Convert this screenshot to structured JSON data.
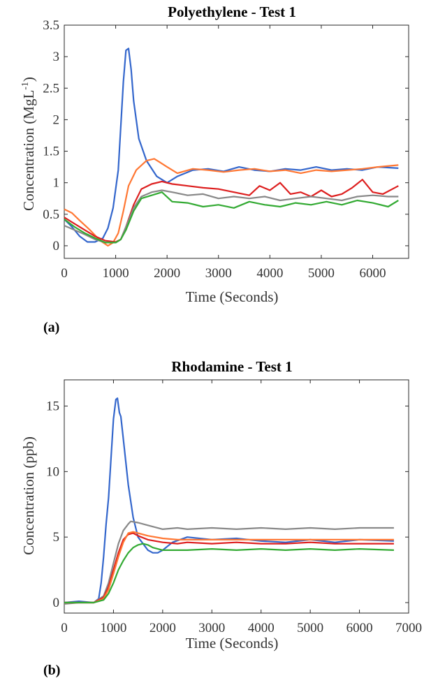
{
  "chart_data": [
    {
      "type": "line",
      "title": "Polyethylene - Test 1",
      "xlabel": "Time (Seconds)",
      "ylabel": "Concentration (MgL",
      "ylabel_sup": "-1",
      "ylabel_close": ")",
      "xlim": [
        0,
        6700
      ],
      "ylim": [
        -0.2,
        3.5
      ],
      "xticks": [
        "0",
        "1000",
        "2000",
        "3000",
        "4000",
        "5000",
        "6000"
      ],
      "yticks": [
        "0",
        "0.5",
        "1",
        "1.5",
        "2",
        "2.5",
        "3",
        "3.5"
      ],
      "grid": false,
      "colors": [
        "#3366cc",
        "#ff7733",
        "#dd1f1f",
        "#888888",
        "#33aa33"
      ],
      "series": [
        {
          "x": [
            0,
            150,
            300,
            450,
            600,
            750,
            850,
            950,
            1050,
            1150,
            1200,
            1250,
            1300,
            1350,
            1450,
            1600,
            1800,
            2000,
            2200,
            2500,
            2800,
            3100,
            3400,
            3700,
            4000,
            4300,
            4600,
            4900,
            5200,
            5500,
            5800,
            6100,
            6500
          ],
          "y": [
            0.42,
            0.3,
            0.15,
            0.06,
            0.06,
            0.12,
            0.28,
            0.6,
            1.2,
            2.6,
            3.1,
            3.13,
            2.8,
            2.3,
            1.7,
            1.35,
            1.1,
            1.0,
            1.1,
            1.2,
            1.22,
            1.18,
            1.25,
            1.2,
            1.18,
            1.22,
            1.2,
            1.25,
            1.2,
            1.22,
            1.2,
            1.25,
            1.23
          ]
        },
        {
          "x": [
            0,
            150,
            300,
            500,
            700,
            850,
            950,
            1050,
            1150,
            1250,
            1400,
            1600,
            1750,
            1850,
            2000,
            2200,
            2500,
            2800,
            3100,
            3400,
            3700,
            4000,
            4300,
            4600,
            4900,
            5200,
            5500,
            5800,
            6100,
            6500
          ],
          "y": [
            0.58,
            0.52,
            0.4,
            0.25,
            0.08,
            0.0,
            0.05,
            0.2,
            0.55,
            0.95,
            1.2,
            1.35,
            1.38,
            1.33,
            1.25,
            1.15,
            1.22,
            1.2,
            1.17,
            1.2,
            1.22,
            1.18,
            1.2,
            1.15,
            1.2,
            1.18,
            1.2,
            1.22,
            1.25,
            1.28
          ]
        },
        {
          "x": [
            0,
            200,
            400,
            600,
            800,
            1000,
            1100,
            1200,
            1350,
            1500,
            1700,
            1900,
            2100,
            2400,
            2700,
            3000,
            3300,
            3600,
            3800,
            4000,
            4200,
            4400,
            4600,
            4800,
            5000,
            5200,
            5400,
            5600,
            5800,
            6000,
            6200,
            6500
          ],
          "y": [
            0.45,
            0.35,
            0.25,
            0.15,
            0.08,
            0.06,
            0.1,
            0.3,
            0.65,
            0.9,
            0.98,
            1.02,
            0.98,
            0.95,
            0.92,
            0.9,
            0.85,
            0.8,
            0.95,
            0.88,
            1.0,
            0.82,
            0.85,
            0.78,
            0.88,
            0.78,
            0.82,
            0.92,
            1.05,
            0.85,
            0.82,
            0.95
          ]
        },
        {
          "x": [
            0,
            200,
            400,
            600,
            800,
            1000,
            1100,
            1200,
            1350,
            1500,
            1700,
            1900,
            2100,
            2400,
            2700,
            3000,
            3300,
            3600,
            3900,
            4200,
            4500,
            4800,
            5100,
            5400,
            5700,
            6000,
            6300,
            6500
          ],
          "y": [
            0.32,
            0.25,
            0.18,
            0.1,
            0.05,
            0.05,
            0.1,
            0.3,
            0.6,
            0.78,
            0.85,
            0.88,
            0.85,
            0.8,
            0.82,
            0.75,
            0.78,
            0.75,
            0.78,
            0.72,
            0.75,
            0.78,
            0.75,
            0.72,
            0.78,
            0.8,
            0.78,
            0.78
          ]
        },
        {
          "x": [
            0,
            200,
            400,
            600,
            800,
            1000,
            1100,
            1200,
            1350,
            1500,
            1700,
            1900,
            2100,
            2400,
            2700,
            3000,
            3300,
            3600,
            3900,
            4200,
            4500,
            4800,
            5100,
            5400,
            5700,
            6000,
            6300,
            6500
          ],
          "y": [
            0.42,
            0.3,
            0.2,
            0.12,
            0.05,
            0.05,
            0.1,
            0.25,
            0.55,
            0.75,
            0.8,
            0.85,
            0.7,
            0.68,
            0.62,
            0.65,
            0.6,
            0.7,
            0.65,
            0.62,
            0.68,
            0.65,
            0.7,
            0.65,
            0.72,
            0.68,
            0.62,
            0.72
          ]
        }
      ]
    },
    {
      "type": "line",
      "title": "Rhodamine - Test 1",
      "xlabel": "Time (Seconds)",
      "ylabel": "Concentration (ppb)",
      "xlim": [
        0,
        7000
      ],
      "ylim": [
        -0.8,
        17
      ],
      "xticks": [
        "0",
        "1000",
        "2000",
        "3000",
        "4000",
        "5000",
        "6000",
        "7000"
      ],
      "yticks": [
        "0",
        "5",
        "10",
        "15"
      ],
      "grid": false,
      "colors": [
        "#3366cc",
        "#888888",
        "#dd1f1f",
        "#ff7733",
        "#33aa33"
      ],
      "series": [
        {
          "x": [
            0,
            300,
            600,
            700,
            750,
            800,
            850,
            900,
            950,
            1000,
            1050,
            1080,
            1120,
            1150,
            1200,
            1300,
            1400,
            1500,
            1600,
            1700,
            1800,
            1900,
            2000,
            2200,
            2500,
            3000,
            3500,
            4000,
            4500,
            5000,
            5500,
            6000,
            6700
          ],
          "y": [
            0.0,
            0.1,
            0.0,
            0.3,
            1.5,
            3.5,
            6.0,
            8.0,
            11.0,
            14.0,
            15.5,
            15.6,
            14.5,
            14.2,
            12.5,
            9.0,
            6.5,
            5.0,
            4.5,
            4.0,
            3.8,
            3.8,
            4.0,
            4.6,
            5.0,
            4.8,
            4.9,
            4.7,
            4.6,
            4.8,
            4.6,
            4.8,
            4.7
          ]
        },
        {
          "x": [
            0,
            300,
            600,
            800,
            900,
            1000,
            1100,
            1200,
            1300,
            1350,
            1500,
            1700,
            2000,
            2300,
            2500,
            3000,
            3500,
            4000,
            4500,
            5000,
            5500,
            6000,
            6700
          ],
          "y": [
            -0.1,
            0.0,
            0.0,
            0.5,
            1.5,
            3.0,
            4.5,
            5.5,
            6.0,
            6.2,
            6.1,
            5.9,
            5.6,
            5.7,
            5.6,
            5.7,
            5.6,
            5.7,
            5.6,
            5.7,
            5.6,
            5.7,
            5.7
          ]
        },
        {
          "x": [
            0,
            300,
            600,
            800,
            900,
            1000,
            1100,
            1200,
            1300,
            1400,
            1500,
            1700,
            2000,
            2300,
            2500,
            3000,
            3500,
            4000,
            4500,
            5000,
            5500,
            6000,
            6700
          ],
          "y": [
            0.0,
            0.0,
            0.0,
            0.4,
            1.2,
            2.5,
            3.8,
            4.8,
            5.2,
            5.3,
            5.1,
            4.8,
            4.6,
            4.5,
            4.6,
            4.5,
            4.6,
            4.5,
            4.5,
            4.6,
            4.5,
            4.5,
            4.5
          ]
        },
        {
          "x": [
            0,
            300,
            600,
            800,
            900,
            1000,
            1100,
            1200,
            1300,
            1400,
            1500,
            1700,
            2000,
            2300,
            2500,
            3000,
            3500,
            4000,
            4500,
            5000,
            5500,
            6000,
            6700
          ],
          "y": [
            0.0,
            0.0,
            0.0,
            0.3,
            1.0,
            2.2,
            3.5,
            4.6,
            5.3,
            5.4,
            5.3,
            5.1,
            4.9,
            4.8,
            4.8,
            4.8,
            4.8,
            4.8,
            4.8,
            4.8,
            4.8,
            4.8,
            4.8
          ]
        },
        {
          "x": [
            0,
            300,
            600,
            800,
            900,
            1000,
            1100,
            1200,
            1300,
            1400,
            1500,
            1600,
            1700,
            1800,
            2000,
            2300,
            2500,
            3000,
            3500,
            4000,
            4500,
            5000,
            5500,
            6000,
            6700
          ],
          "y": [
            0.0,
            0.0,
            0.0,
            0.2,
            0.7,
            1.5,
            2.5,
            3.2,
            3.8,
            4.2,
            4.4,
            4.5,
            4.4,
            4.2,
            4.0,
            4.0,
            4.0,
            4.1,
            4.0,
            4.1,
            4.0,
            4.1,
            4.0,
            4.1,
            4.0
          ]
        }
      ]
    }
  ],
  "panel_labels": {
    "a": "(a)",
    "b": "(b)"
  }
}
